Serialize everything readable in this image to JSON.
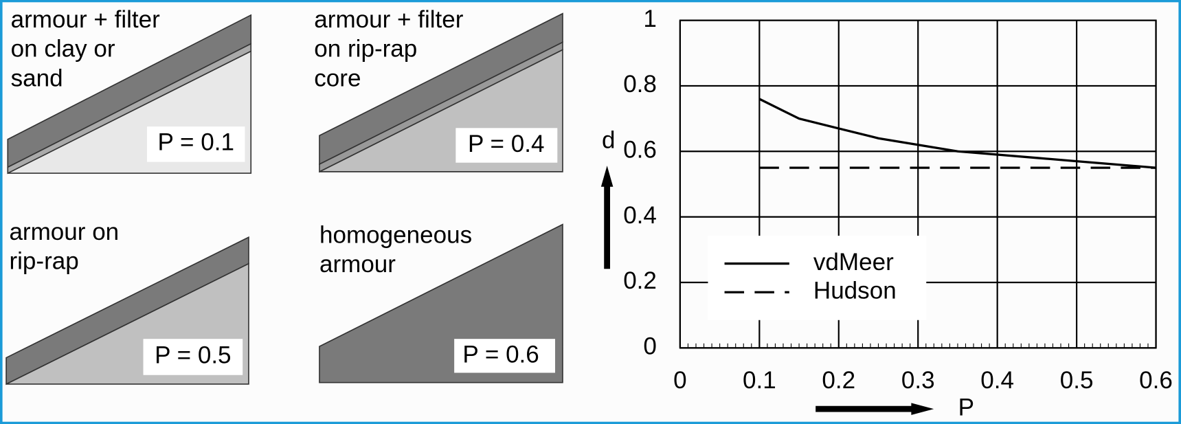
{
  "panels": [
    {
      "lines": [
        "armour + filter",
        "on clay or",
        "sand"
      ],
      "p_label": "P = 0.1"
    },
    {
      "lines": [
        "armour + filter",
        "on rip-rap",
        "core"
      ],
      "p_label": "P = 0.4"
    },
    {
      "lines": [
        "armour on",
        "rip-rap"
      ],
      "p_label": "P = 0.5"
    },
    {
      "lines": [
        "homogeneous",
        "armour"
      ],
      "p_label": "P = 0.6"
    }
  ],
  "chart_data": {
    "type": "line",
    "x_label": "P",
    "y_label": "d",
    "x": [
      0.1,
      0.15,
      0.2,
      0.25,
      0.3,
      0.35,
      0.4,
      0.45,
      0.5,
      0.55,
      0.6
    ],
    "series": [
      {
        "name": "vdMeer",
        "color": "#000000",
        "dash": "solid",
        "values": [
          0.76,
          0.7,
          0.67,
          0.64,
          0.62,
          0.6,
          0.59,
          0.58,
          0.57,
          0.56,
          0.55
        ]
      },
      {
        "name": "Hudson",
        "color": "#000000",
        "dash": "dashed",
        "values": [
          0.55,
          0.55,
          0.55,
          0.55,
          0.55,
          0.55,
          0.55,
          0.55,
          0.55,
          0.55,
          0.55
        ]
      }
    ],
    "xlim": [
      0,
      0.6
    ],
    "xticks": [
      0,
      0.1,
      0.2,
      0.3,
      0.4,
      0.5,
      0.6
    ],
    "ylim": [
      0,
      1
    ],
    "yticks": [
      0,
      0.2,
      0.4,
      0.6,
      0.8,
      1
    ],
    "grid": true
  }
}
